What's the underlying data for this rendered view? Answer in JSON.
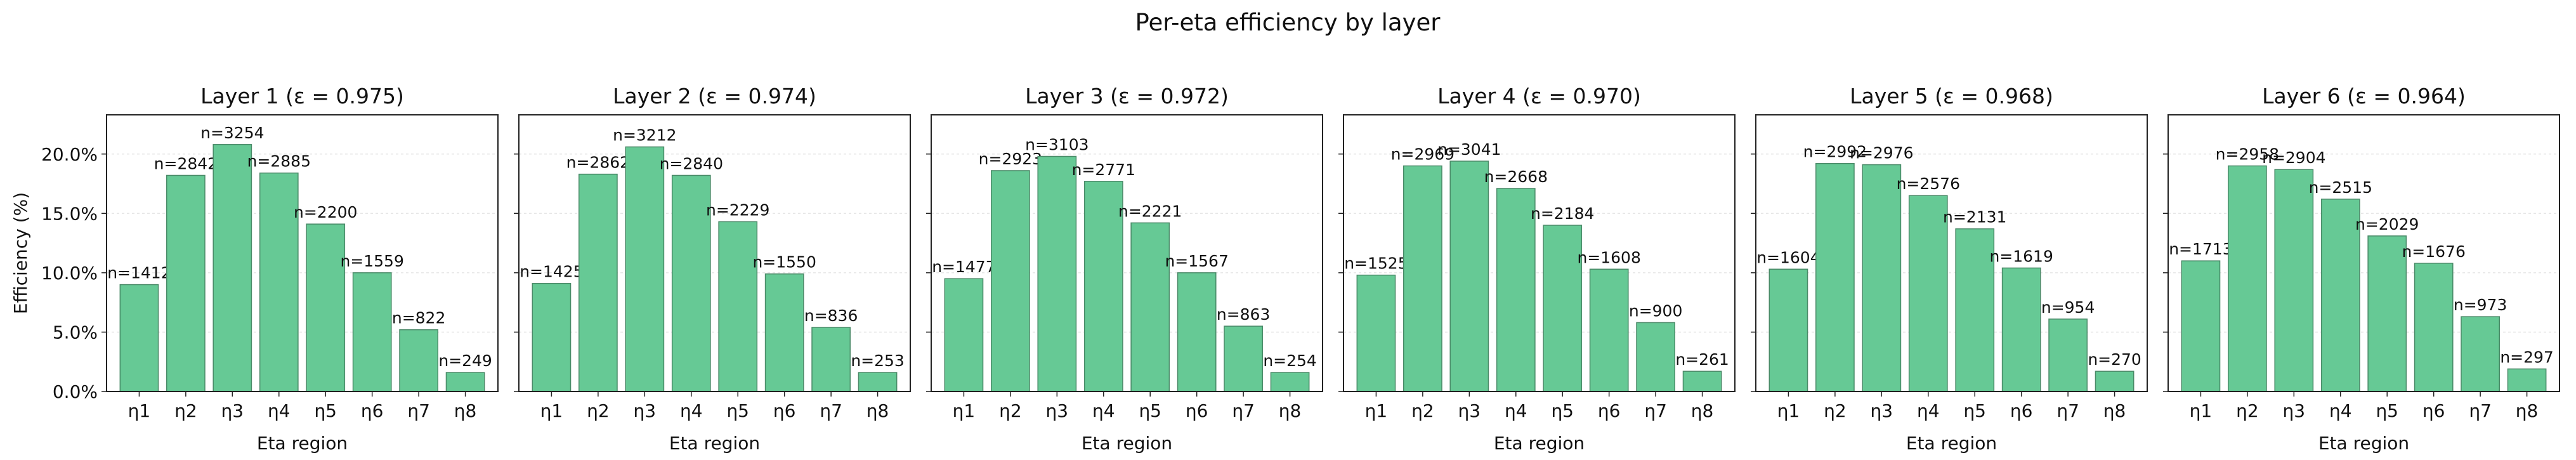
{
  "figure": {
    "suptitle": "Per-eta efficiency by layer",
    "bar_color": "#66c995",
    "bar_edge_color": "#4a8a68"
  },
  "chart_data": [
    {
      "type": "bar",
      "title": "Layer 1  (ε = 0.975)",
      "xlabel": "Eta region",
      "ylabel": "Efficiency (%)",
      "categories": [
        "η1",
        "η2",
        "η3",
        "η4",
        "η5",
        "η6",
        "η7",
        "η8"
      ],
      "values": [
        9.0,
        18.2,
        20.8,
        18.4,
        14.1,
        10.0,
        5.2,
        1.6
      ],
      "labels": [
        "n=1412",
        "n=2842",
        "n=3254",
        "n=2885",
        "n=2200",
        "n=1559",
        "n=822",
        "n=249"
      ],
      "ylim": [
        0,
        23.3
      ],
      "yticks": [
        0,
        5,
        10,
        15,
        20
      ],
      "ytick_labels": [
        "0.0%",
        "5.0%",
        "10.0%",
        "15.0%",
        "20.0%"
      ],
      "grid": "horizontal"
    },
    {
      "type": "bar",
      "title": "Layer 2  (ε = 0.974)",
      "xlabel": "Eta region",
      "ylabel": "",
      "categories": [
        "η1",
        "η2",
        "η3",
        "η4",
        "η5",
        "η6",
        "η7",
        "η8"
      ],
      "values": [
        9.1,
        18.3,
        20.6,
        18.2,
        14.3,
        9.9,
        5.4,
        1.6
      ],
      "labels": [
        "n=1425",
        "n=2862",
        "n=3212",
        "n=2840",
        "n=2229",
        "n=1550",
        "n=836",
        "n=253"
      ],
      "ylim": [
        0,
        23.3
      ],
      "yticks": [
        0,
        5,
        10,
        15,
        20
      ],
      "ytick_labels": [],
      "grid": "horizontal"
    },
    {
      "type": "bar",
      "title": "Layer 3  (ε = 0.972)",
      "xlabel": "Eta region",
      "ylabel": "",
      "categories": [
        "η1",
        "η2",
        "η3",
        "η4",
        "η5",
        "η6",
        "η7",
        "η8"
      ],
      "values": [
        9.5,
        18.6,
        19.8,
        17.7,
        14.2,
        10.0,
        5.5,
        1.6
      ],
      "labels": [
        "n=1477",
        "n=2923",
        "n=3103",
        "n=2771",
        "n=2221",
        "n=1567",
        "n=863",
        "n=254"
      ],
      "ylim": [
        0,
        23.3
      ],
      "yticks": [
        0,
        5,
        10,
        15,
        20
      ],
      "ytick_labels": [],
      "grid": "horizontal"
    },
    {
      "type": "bar",
      "title": "Layer 4  (ε = 0.970)",
      "xlabel": "Eta region",
      "ylabel": "",
      "categories": [
        "η1",
        "η2",
        "η3",
        "η4",
        "η5",
        "η6",
        "η7",
        "η8"
      ],
      "values": [
        9.8,
        19.0,
        19.4,
        17.1,
        14.0,
        10.3,
        5.8,
        1.7
      ],
      "labels": [
        "n=1525",
        "n=2969",
        "n=3041",
        "n=2668",
        "n=2184",
        "n=1608",
        "n=900",
        "n=261"
      ],
      "ylim": [
        0,
        23.3
      ],
      "yticks": [
        0,
        5,
        10,
        15,
        20
      ],
      "ytick_labels": [],
      "grid": "horizontal"
    },
    {
      "type": "bar",
      "title": "Layer 5  (ε = 0.968)",
      "xlabel": "Eta region",
      "ylabel": "",
      "categories": [
        "η1",
        "η2",
        "η3",
        "η4",
        "η5",
        "η6",
        "η7",
        "η8"
      ],
      "values": [
        10.3,
        19.2,
        19.1,
        16.5,
        13.7,
        10.4,
        6.1,
        1.7
      ],
      "labels": [
        "n=1604",
        "n=2992",
        "n=2976",
        "n=2576",
        "n=2131",
        "n=1619",
        "n=954",
        "n=270"
      ],
      "ylim": [
        0,
        23.3
      ],
      "yticks": [
        0,
        5,
        10,
        15,
        20
      ],
      "ytick_labels": [],
      "grid": "horizontal"
    },
    {
      "type": "bar",
      "title": "Layer 6  (ε = 0.964)",
      "xlabel": "Eta region",
      "ylabel": "",
      "categories": [
        "η1",
        "η2",
        "η3",
        "η4",
        "η5",
        "η6",
        "η7",
        "η8"
      ],
      "values": [
        11.0,
        19.0,
        18.7,
        16.2,
        13.1,
        10.8,
        6.3,
        1.9
      ],
      "labels": [
        "n=1713",
        "n=2958",
        "n=2904",
        "n=2515",
        "n=2029",
        "n=1676",
        "n=973",
        "n=297"
      ],
      "ylim": [
        0,
        23.3
      ],
      "yticks": [
        0,
        5,
        10,
        15,
        20
      ],
      "ytick_labels": [],
      "grid": "horizontal"
    }
  ]
}
